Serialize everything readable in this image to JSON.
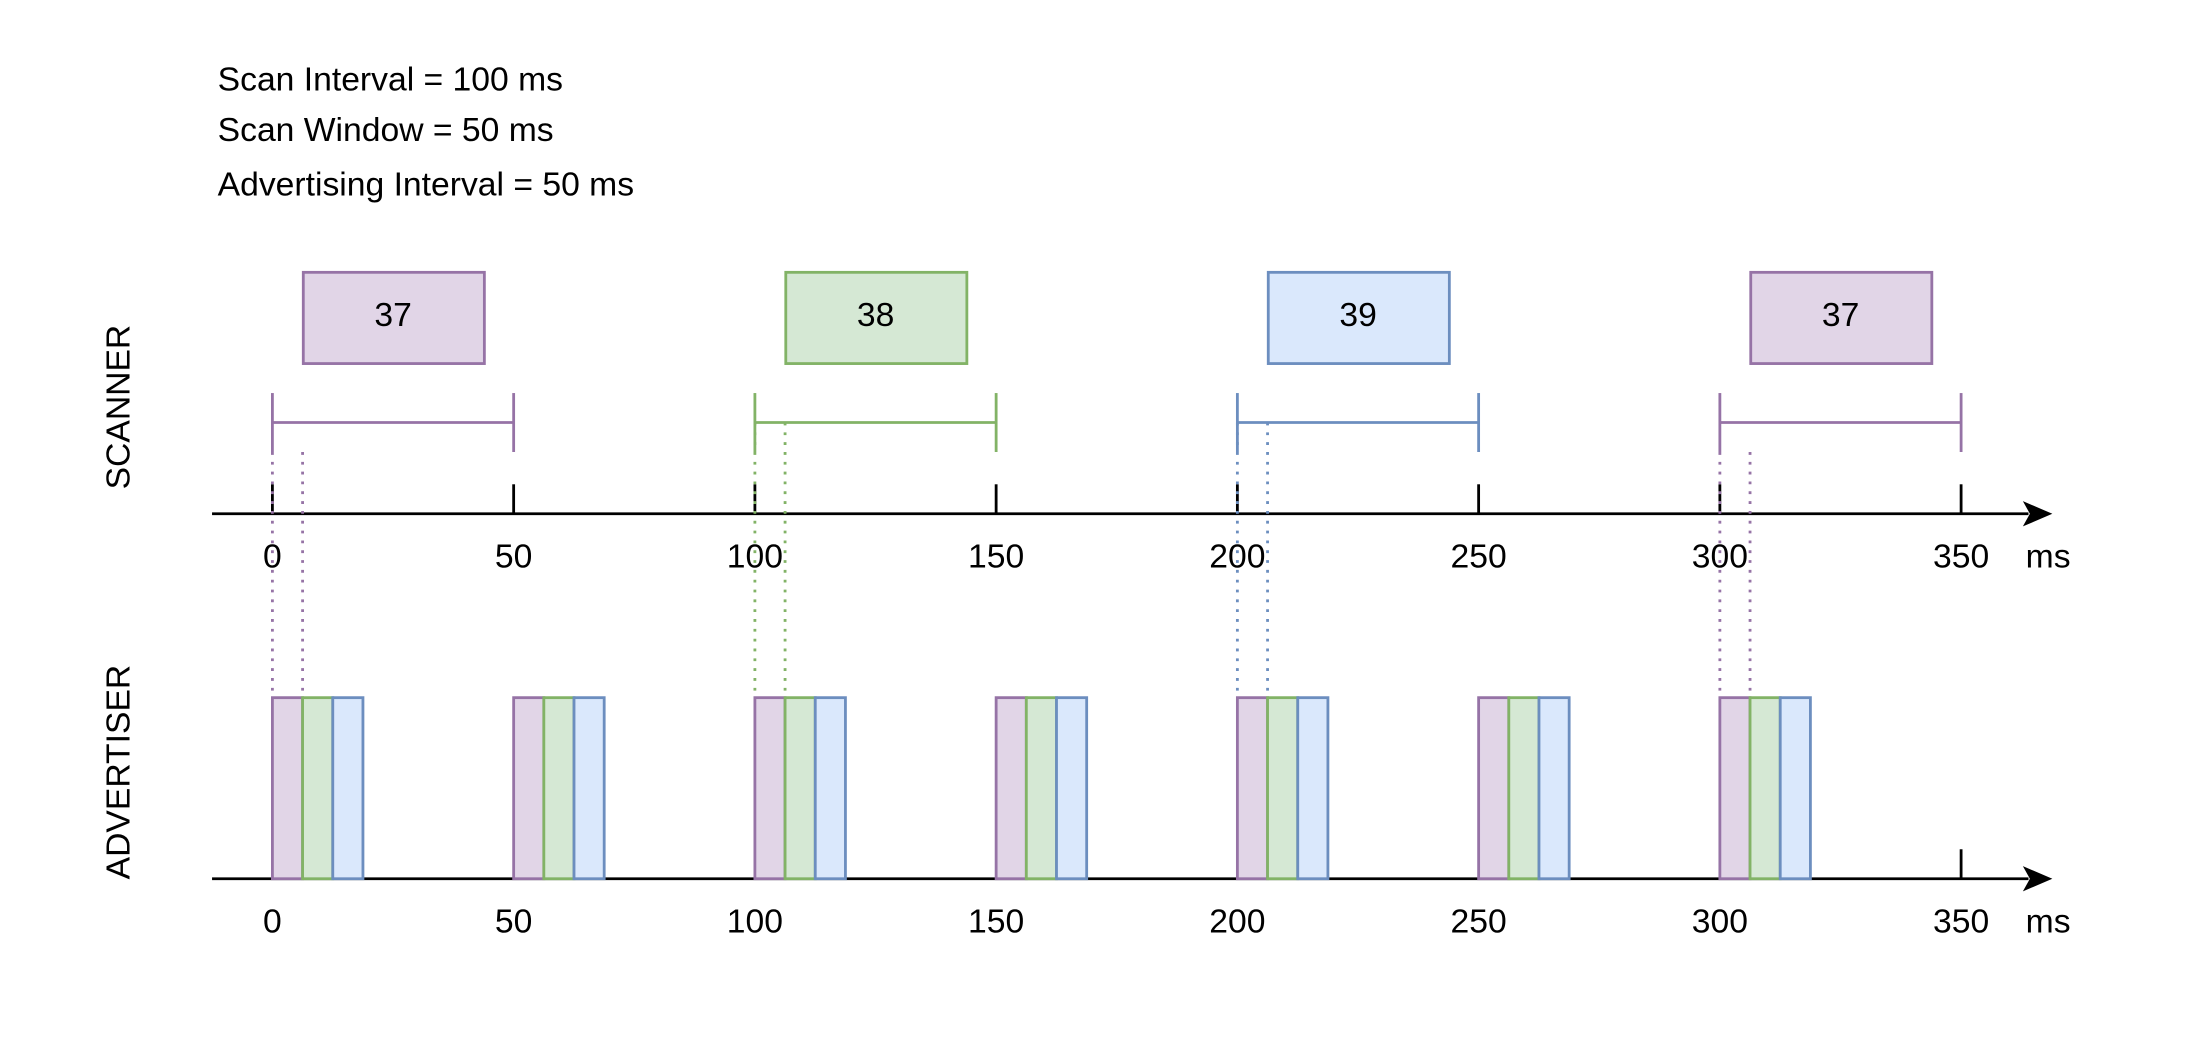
{
  "notes": [
    "Scan Interval = 100 ms",
    "Scan Window = 50 ms",
    "Advertising Interval = 50 ms"
  ],
  "scanner": {
    "label": "SCANNER",
    "windows": [
      "37",
      "38",
      "39",
      "37"
    ],
    "axis": {
      "ticks": [
        0,
        50,
        100,
        150,
        200,
        250,
        300,
        350
      ],
      "unit": "ms"
    }
  },
  "advertiser": {
    "label": "ADVERTISER",
    "axis": {
      "ticks": [
        0,
        50,
        100,
        150,
        200,
        250,
        300,
        350
      ],
      "unit": "ms"
    }
  }
}
